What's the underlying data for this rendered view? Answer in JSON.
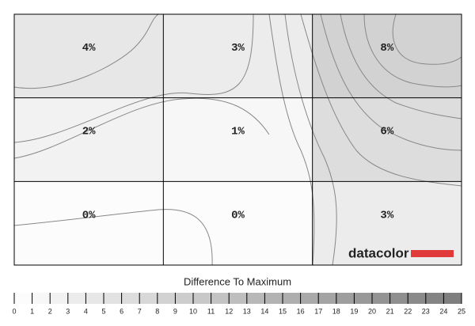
{
  "chart_data": {
    "type": "uniformity",
    "rows": [
      [
        4,
        3,
        8
      ],
      [
        2,
        1,
        6
      ],
      [
        0,
        0,
        3
      ]
    ],
    "value_labels": [
      [
        "4%",
        "3%",
        "8%"
      ],
      [
        "2%",
        "1%",
        "6%"
      ],
      [
        "0%",
        "0%",
        "3%"
      ]
    ],
    "scale_title": "Difference To Maximum",
    "scale_lim": [
      0,
      25
    ],
    "scale_ticks": [
      0,
      1,
      2,
      3,
      4,
      5,
      6,
      7,
      8,
      9,
      10,
      11,
      12,
      13,
      14,
      15,
      16,
      17,
      18,
      19,
      20,
      21,
      22,
      23,
      24,
      25
    ],
    "brand": "datacolor",
    "brand_color": "#e03a3a"
  }
}
